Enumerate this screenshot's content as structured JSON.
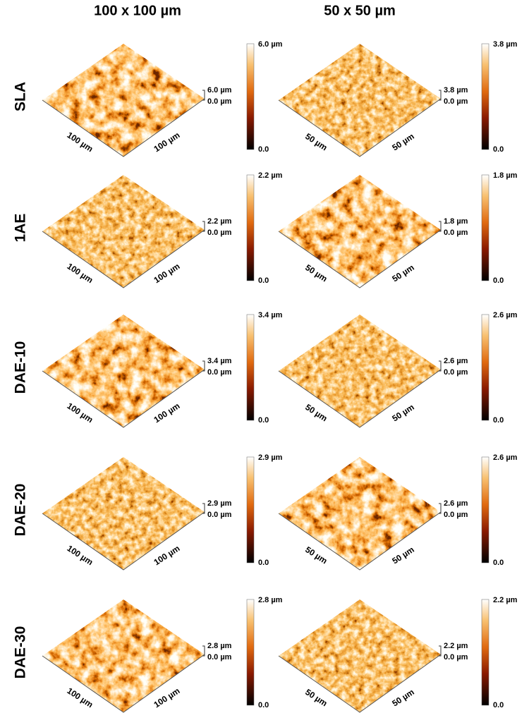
{
  "columns": [
    "100 x 100 µm",
    "50 x 50 µm"
  ],
  "rows": [
    {
      "label": "SLA",
      "panels": [
        {
          "x_label": "100 µm",
          "y_label": "100 µm",
          "z_max": "6.0 µm",
          "z_min": "0.0 µm",
          "bar_max": "6.0 µm",
          "bar_min": "0.0"
        },
        {
          "x_label": "50 µm",
          "y_label": "50 µm",
          "z_max": "3.8 µm",
          "z_min": "0.0 µm",
          "bar_max": "3.8 µm",
          "bar_min": "0.0"
        }
      ]
    },
    {
      "label": "1AE",
      "panels": [
        {
          "x_label": "100 µm",
          "y_label": "100 µm",
          "z_max": "2.2 µm",
          "z_min": "0.0 µm",
          "bar_max": "2.2 µm",
          "bar_min": "0.0"
        },
        {
          "x_label": "50 µm",
          "y_label": "50 µm",
          "z_max": "1.8 µm",
          "z_min": "0.0 µm",
          "bar_max": "1.8 µm",
          "bar_min": "0.0"
        }
      ]
    },
    {
      "label": "DAE-10",
      "panels": [
        {
          "x_label": "100 µm",
          "y_label": "100 µm",
          "z_max": "3.4 µm",
          "z_min": "0.0 µm",
          "bar_max": "3.4 µm",
          "bar_min": "0.0"
        },
        {
          "x_label": "50 µm",
          "y_label": "50 µm",
          "z_max": "2.6 µm",
          "z_min": "0.0 µm",
          "bar_max": "2.6 µm",
          "bar_min": "0.0"
        }
      ]
    },
    {
      "label": "DAE-20",
      "panels": [
        {
          "x_label": "100 µm",
          "y_label": "100 µm",
          "z_max": "2.9 µm",
          "z_min": "0.0 µm",
          "bar_max": "2.9 µm",
          "bar_min": "0.0"
        },
        {
          "x_label": "50 µm",
          "y_label": "50 µm",
          "z_max": "2.6 µm",
          "z_min": "0.0 µm",
          "bar_max": "2.6 µm",
          "bar_min": "0.0"
        }
      ]
    },
    {
      "label": "DAE-30",
      "panels": [
        {
          "x_label": "100 µm",
          "y_label": "100 µm",
          "z_max": "2.8 µm",
          "z_min": "0.0 µm",
          "bar_max": "2.8 µm",
          "bar_min": "0.0"
        },
        {
          "x_label": "50 µm",
          "y_label": "50 µm",
          "z_max": "2.2 µm",
          "z_min": "0.0 µm",
          "bar_max": "2.2 µm",
          "bar_min": "0.0"
        }
      ]
    }
  ]
}
